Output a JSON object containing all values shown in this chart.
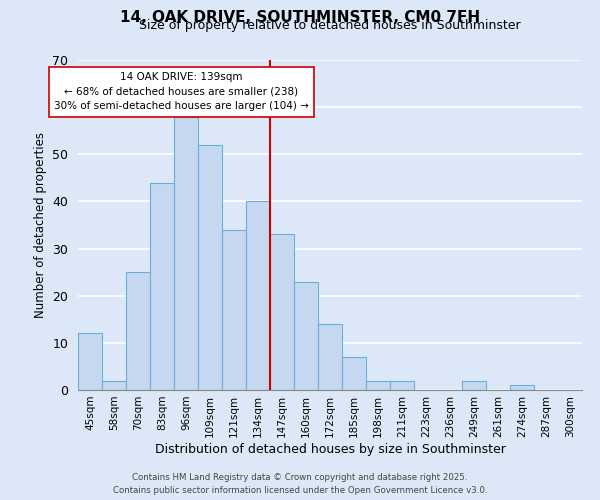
{
  "title": "14, OAK DRIVE, SOUTHMINSTER, CM0 7FH",
  "subtitle": "Size of property relative to detached houses in Southminster",
  "xlabel": "Distribution of detached houses by size in Southminster",
  "ylabel": "Number of detached properties",
  "bin_labels": [
    "45sqm",
    "58sqm",
    "70sqm",
    "83sqm",
    "96sqm",
    "109sqm",
    "121sqm",
    "134sqm",
    "147sqm",
    "160sqm",
    "172sqm",
    "185sqm",
    "198sqm",
    "211sqm",
    "223sqm",
    "236sqm",
    "249sqm",
    "261sqm",
    "274sqm",
    "287sqm",
    "300sqm"
  ],
  "bar_values": [
    12,
    2,
    25,
    44,
    58,
    52,
    34,
    40,
    33,
    23,
    14,
    7,
    2,
    2,
    0,
    0,
    2,
    0,
    1,
    0,
    0
  ],
  "bar_color": "#c5d8f0",
  "bar_edge_color": "#6aaed6",
  "vline_x": 7.5,
  "vline_color": "#cc0000",
  "annotation_title": "14 OAK DRIVE: 139sqm",
  "annotation_line1": "← 68% of detached houses are smaller (238)",
  "annotation_line2": "30% of semi-detached houses are larger (104) →",
  "annotation_box_color": "#ffffff",
  "annotation_border_color": "#cc0000",
  "ylim": [
    0,
    70
  ],
  "yticks": [
    0,
    10,
    20,
    30,
    40,
    50,
    60,
    70
  ],
  "footer1": "Contains HM Land Registry data © Crown copyright and database right 2025.",
  "footer2": "Contains public sector information licensed under the Open Government Licence v3.0.",
  "bg_color": "#dce8f8"
}
